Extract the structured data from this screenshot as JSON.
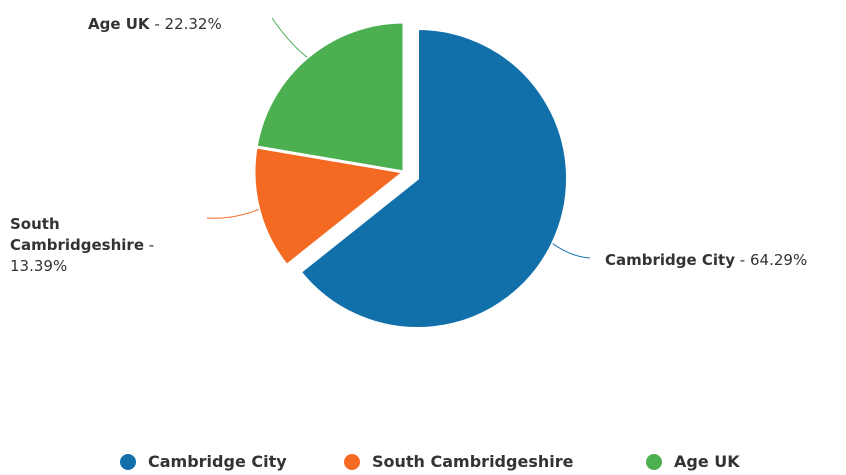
{
  "chart_data": {
    "type": "pie",
    "categories": [
      "Cambridge City",
      "South Cambridgeshire",
      "Age UK"
    ],
    "values": [
      64.29,
      13.39,
      22.32
    ],
    "value_labels": [
      "64.29%",
      "13.39%",
      "22.32%"
    ],
    "label_separator": "-",
    "colors": [
      "#1170aa",
      "#f46a22",
      "#4caf50"
    ],
    "legend": "bottom"
  }
}
